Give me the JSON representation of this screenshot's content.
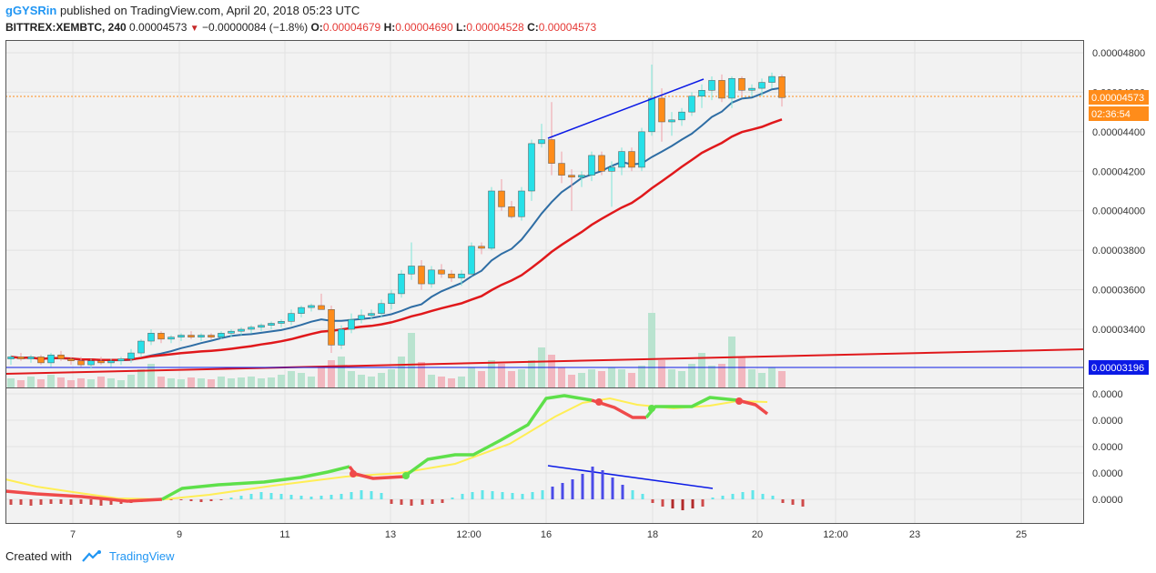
{
  "header": {
    "author": "gGYSRin",
    "published": "published on TradingView.com, April 20, 2018 05:23 UTC",
    "symbol": "BITTREX:XEMBTC, 240",
    "last": "0.00004573",
    "change": "−0.00000084 (−1.8%)",
    "o_label": "O:",
    "o_value": "0.00004679",
    "h_label": "H:",
    "h_value": "0.00004690",
    "l_label": "L:",
    "l_value": "0.00004528",
    "c_label": "C:",
    "c_value": "0.00004573"
  },
  "footer": {
    "created_with": "Created with",
    "brand": "TradingView"
  },
  "chart_data": {
    "type": "candlestick",
    "y_axis_labels": [
      "0.00004800",
      "0.00004600",
      "0.00004400",
      "0.00004200",
      "0.00004000",
      "0.00003800",
      "0.00003600",
      "0.00003400"
    ],
    "ylim": [
      3.16e-05,
      4.87e-05
    ],
    "price_badge": "0.00004573",
    "countdown_badge": "02:36:54",
    "hline_badge": "0.00003196",
    "hline_value": 3.196e-05,
    "x_tick_labels": [
      "7",
      "9",
      "11",
      "13",
      "12:00",
      "16",
      "18",
      "20",
      "12:00",
      "23",
      "25"
    ],
    "oscillator_labels": [
      "0.0000",
      "0.0000",
      "0.0000",
      "0.0000",
      "0.0000"
    ],
    "colors": {
      "up": "#26e0e8",
      "down": "#ff8c1a",
      "ma_fast": "#2e6da4",
      "ma_slow": "#e0181b",
      "osc_up": "#5ee04a",
      "osc_down": "#ef4a4a",
      "signal": "#ffee55",
      "trend": "#0b1ae6"
    },
    "candles": [
      [
        3.25,
        3.27,
        3.22,
        3.26
      ],
      [
        3.26,
        3.28,
        3.24,
        3.25
      ],
      [
        3.25,
        3.27,
        3.23,
        3.26
      ],
      [
        3.26,
        3.27,
        3.22,
        3.23
      ],
      [
        3.23,
        3.28,
        3.21,
        3.27
      ],
      [
        3.27,
        3.29,
        3.24,
        3.25
      ],
      [
        3.25,
        3.26,
        3.22,
        3.24
      ],
      [
        3.24,
        3.26,
        3.21,
        3.22
      ],
      [
        3.22,
        3.25,
        3.2,
        3.24
      ],
      [
        3.24,
        3.26,
        3.22,
        3.23
      ],
      [
        3.23,
        3.25,
        3.21,
        3.24
      ],
      [
        3.24,
        3.26,
        3.22,
        3.25
      ],
      [
        3.25,
        3.3,
        3.23,
        3.28
      ],
      [
        3.28,
        3.35,
        3.26,
        3.34
      ],
      [
        3.34,
        3.4,
        3.32,
        3.38
      ],
      [
        3.38,
        3.39,
        3.33,
        3.35
      ],
      [
        3.35,
        3.37,
        3.33,
        3.36
      ],
      [
        3.36,
        3.38,
        3.34,
        3.37
      ],
      [
        3.37,
        3.39,
        3.35,
        3.36
      ],
      [
        3.36,
        3.38,
        3.34,
        3.37
      ],
      [
        3.37,
        3.38,
        3.35,
        3.36
      ],
      [
        3.36,
        3.39,
        3.35,
        3.38
      ],
      [
        3.38,
        3.4,
        3.36,
        3.39
      ],
      [
        3.39,
        3.41,
        3.37,
        3.4
      ],
      [
        3.4,
        3.42,
        3.38,
        3.41
      ],
      [
        3.41,
        3.43,
        3.39,
        3.42
      ],
      [
        3.42,
        3.44,
        3.4,
        3.43
      ],
      [
        3.43,
        3.45,
        3.41,
        3.44
      ],
      [
        3.44,
        3.5,
        3.42,
        3.48
      ],
      [
        3.48,
        3.52,
        3.46,
        3.51
      ],
      [
        3.51,
        3.53,
        3.49,
        3.52
      ],
      [
        3.52,
        3.58,
        3.5,
        3.5
      ],
      [
        3.5,
        3.52,
        3.28,
        3.32
      ],
      [
        3.32,
        3.42,
        3.3,
        3.4
      ],
      [
        3.4,
        3.48,
        3.38,
        3.45
      ],
      [
        3.45,
        3.5,
        3.43,
        3.47
      ],
      [
        3.47,
        3.5,
        3.45,
        3.48
      ],
      [
        3.48,
        3.55,
        3.46,
        3.53
      ],
      [
        3.53,
        3.6,
        3.5,
        3.58
      ],
      [
        3.58,
        3.7,
        3.56,
        3.68
      ],
      [
        3.68,
        3.84,
        3.65,
        3.72
      ],
      [
        3.72,
        3.75,
        3.6,
        3.63
      ],
      [
        3.63,
        3.72,
        3.61,
        3.7
      ],
      [
        3.7,
        3.73,
        3.66,
        3.68
      ],
      [
        3.68,
        3.7,
        3.64,
        3.66
      ],
      [
        3.66,
        3.7,
        3.62,
        3.68
      ],
      [
        3.68,
        3.84,
        3.67,
        3.82
      ],
      [
        3.82,
        3.84,
        3.78,
        3.81
      ],
      [
        3.81,
        4.12,
        3.8,
        4.1
      ],
      [
        4.1,
        4.16,
        4.0,
        4.02
      ],
      [
        4.02,
        4.05,
        3.96,
        3.97
      ],
      [
        3.97,
        4.12,
        3.95,
        4.1
      ],
      [
        4.1,
        4.36,
        4.05,
        4.34
      ],
      [
        4.34,
        4.44,
        4.32,
        4.36
      ],
      [
        4.36,
        4.55,
        4.18,
        4.24
      ],
      [
        4.24,
        4.3,
        4.14,
        4.18
      ],
      [
        4.18,
        4.21,
        4.0,
        4.17
      ],
      [
        4.17,
        4.2,
        4.12,
        4.18
      ],
      [
        4.18,
        4.3,
        4.15,
        4.28
      ],
      [
        4.28,
        4.3,
        4.18,
        4.2
      ],
      [
        4.2,
        4.25,
        4.02,
        4.22
      ],
      [
        4.22,
        4.32,
        4.18,
        4.3
      ],
      [
        4.3,
        4.32,
        4.2,
        4.22
      ],
      [
        4.22,
        4.42,
        4.2,
        4.4
      ],
      [
        4.4,
        4.74,
        4.38,
        4.57
      ],
      [
        4.57,
        4.62,
        4.35,
        4.45
      ],
      [
        4.45,
        4.5,
        4.38,
        4.46
      ],
      [
        4.46,
        4.52,
        4.43,
        4.5
      ],
      [
        4.5,
        4.6,
        4.48,
        4.58
      ],
      [
        4.58,
        4.64,
        4.52,
        4.61
      ],
      [
        4.61,
        4.68,
        4.56,
        4.66
      ],
      [
        4.66,
        4.69,
        4.55,
        4.57
      ],
      [
        4.57,
        4.68,
        4.52,
        4.67
      ],
      [
        4.67,
        4.68,
        4.58,
        4.61
      ],
      [
        4.61,
        4.64,
        4.58,
        4.62
      ],
      [
        4.62,
        4.67,
        4.58,
        4.65
      ],
      [
        4.65,
        4.7,
        4.62,
        4.68
      ],
      [
        4.679,
        4.69,
        4.528,
        4.573
      ]
    ]
  }
}
